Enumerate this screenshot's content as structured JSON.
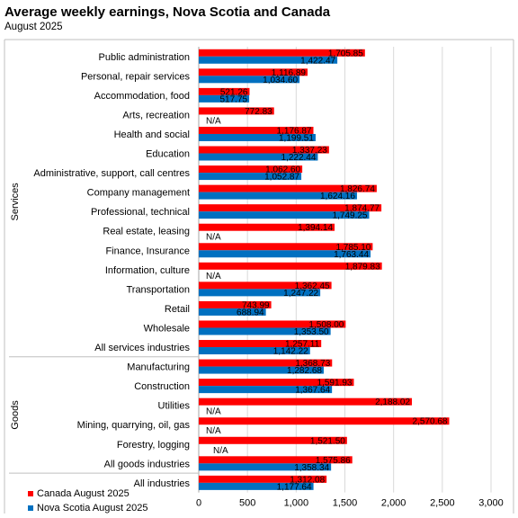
{
  "chart_data": {
    "type": "bar",
    "orientation": "horizontal",
    "title": "Average weekly earnings, Nova Scotia and Canada",
    "subtitle": "August 2025",
    "xlim": [
      0,
      3000
    ],
    "xticks": [
      "0",
      "500",
      "1,000",
      "1,500",
      "2,000",
      "2,500",
      "3,000"
    ],
    "xtick_values": [
      0,
      500,
      1000,
      1500,
      2000,
      2500,
      3000
    ],
    "grid": true,
    "legend_position": "bottom-left",
    "na_label": "N/A",
    "groups": [
      {
        "name": "Services",
        "start": 0,
        "end": 15
      },
      {
        "name": "Goods",
        "start": 16,
        "end": 21
      }
    ],
    "categories": [
      "Public administration",
      "Personal, repair services",
      "Accommodation, food",
      "Arts, recreation",
      "Health and social",
      "Education",
      "Administrative, support, call centres",
      "Company management",
      "Professional, technical",
      "Real estate, leasing",
      "Finance, Insurance",
      "Information, culture",
      "Transportation",
      "Retail",
      "Wholesale",
      "All services industries",
      "Manufacturing",
      "Construction",
      "Utilities",
      "Mining, quarrying, oil, gas",
      "Forestry, logging",
      "All goods industries",
      "All industries"
    ],
    "series": [
      {
        "name": "Canada August 2025",
        "color": "#ff0000",
        "values": [
          1705.85,
          1116.89,
          521.26,
          772.83,
          1176.87,
          1337.23,
          1062.6,
          1826.74,
          1874.77,
          1394.14,
          1785.1,
          1879.83,
          1362.45,
          743.99,
          1508.0,
          1257.11,
          1368.73,
          1591.93,
          2188.02,
          2570.68,
          1521.5,
          1575.86,
          1312.08
        ],
        "labels": [
          "1,705.85",
          "1,116.89",
          "521.26",
          "772.83",
          "1,176.87",
          "1,337.23",
          "1,062.60",
          "1,826.74",
          "1,874.77",
          "1,394.14",
          "1,785.10",
          "1,879.83",
          "1,362.45",
          "743.99",
          "1,508.00",
          "1,257.11",
          "1,368.73",
          "1,591.93",
          "2,188.02",
          "2,570.68",
          "1,521.50",
          "1,575.86",
          "1,312.08"
        ]
      },
      {
        "name": "Nova Scotia August 2025",
        "color": "#0070c0",
        "values": [
          1422.47,
          1034.6,
          517.75,
          null,
          1199.51,
          1222.44,
          1052.87,
          1624.16,
          1749.25,
          null,
          1763.44,
          null,
          1247.22,
          688.94,
          1353.5,
          1142.22,
          1282.68,
          1367.64,
          null,
          null,
          null,
          1358.34,
          1177.64
        ],
        "labels": [
          "1,422.47",
          "1,034.60",
          "517.75",
          null,
          "1,199.51",
          "1,222.44",
          "1,052.87",
          "1,624.16",
          "1,749.25",
          null,
          "1,763.44",
          null,
          "1,247.22",
          "688.94",
          "1,353.50",
          "1,142.22",
          "1,282.68",
          "1,367.64",
          null,
          null,
          null,
          "1,358.34",
          "1,177.64"
        ]
      }
    ]
  }
}
